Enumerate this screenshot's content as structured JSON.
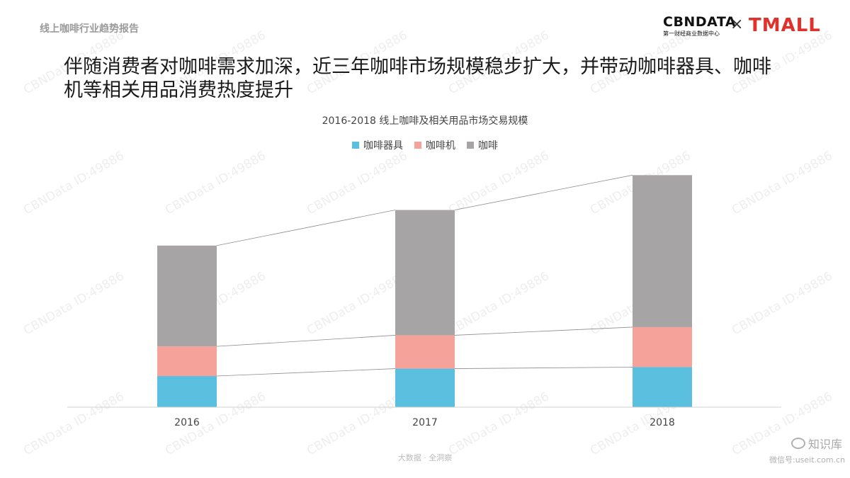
{
  "header": {
    "report_tag": "线上咖啡行业趋势报告",
    "logo_cbn_main": "CBNDATA",
    "logo_cbn_sub": "第一财经商业数据中心",
    "logo_x": "×",
    "logo_tmall": "TMALL"
  },
  "slide_title": "伴随消费者对咖啡需求加深，近三年咖啡市场规模稳步扩大，并带动咖啡器具、咖啡机等相关用品消费热度提升",
  "footer": {
    "text": "大数据 · 全洞察"
  },
  "watermark": {
    "text": "CBNData ID:49886",
    "brand": "知识库",
    "url": "微信号:useit.com.cn"
  },
  "colors": {
    "accent_blue": "#5bbfe0",
    "accent_pink": "#f5a29a",
    "accent_gray": "#a6a4a5",
    "brand_red": "#e0322b"
  },
  "chart_data": {
    "type": "bar",
    "stacked": true,
    "title": "2016-2018 线上咖啡及相关用品市场交易规模",
    "categories": [
      "2016",
      "2017",
      "2018"
    ],
    "series": [
      {
        "name": "咖啡器具",
        "color": "#5bbfe0",
        "values": [
          42,
          52,
          54
        ]
      },
      {
        "name": "咖啡机",
        "color": "#f5a29a",
        "values": [
          40,
          45,
          54
        ]
      },
      {
        "name": "咖啡",
        "color": "#a6a4a5",
        "values": [
          136,
          169,
          205
        ]
      }
    ],
    "ylim": [
      0,
      320
    ],
    "grid": false,
    "legend_position": "top-center",
    "connector_lines": true,
    "xlabel": "",
    "ylabel": ""
  }
}
